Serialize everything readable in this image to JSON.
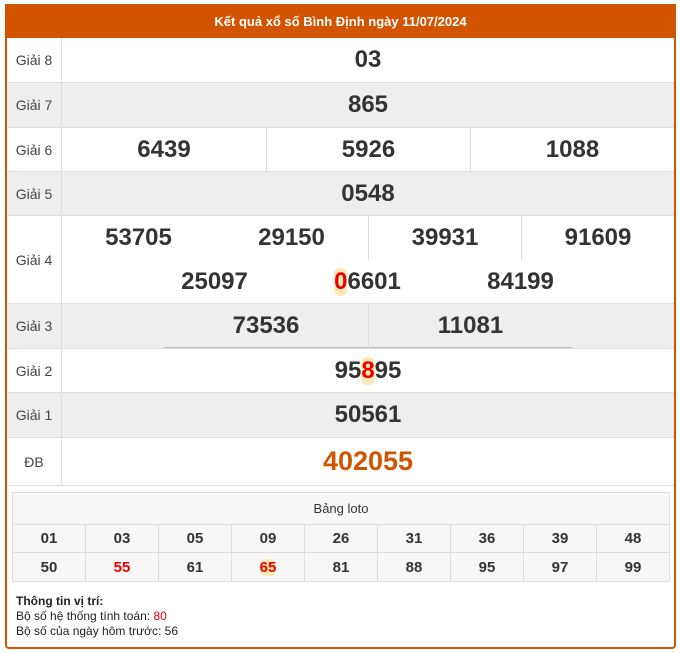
{
  "header": {
    "title": "Kết quả xổ số Bình Định ngày 11/07/2024"
  },
  "prizes": {
    "g8": {
      "label": "Giải 8",
      "numbers": [
        "03"
      ]
    },
    "g7": {
      "label": "Giải 7",
      "numbers": [
        "865"
      ]
    },
    "g6": {
      "label": "Giải 6",
      "numbers": [
        "6439",
        "5926",
        "1088"
      ]
    },
    "g5": {
      "label": "Giải 5",
      "numbers": [
        "0548"
      ]
    },
    "g4": {
      "label": "Giải 4",
      "numbers": [
        "53705",
        "29150",
        "39931",
        "91609",
        "25097",
        "06601",
        "84199"
      ],
      "highlight_first_digit": "0",
      "highlight_rest": "6601"
    },
    "g3": {
      "label": "Giải 3",
      "numbers": [
        "73536",
        "11081"
      ]
    },
    "g2": {
      "label": "Giải 2",
      "numbers": [
        "95895"
      ],
      "parts": [
        "95",
        "8",
        "95"
      ]
    },
    "g1": {
      "label": "Giải 1",
      "numbers": [
        "50561"
      ]
    },
    "db": {
      "label": "ĐB",
      "numbers": [
        "402055"
      ]
    }
  },
  "loto": {
    "title": "Bảng loto",
    "rows": [
      [
        "01",
        "03",
        "05",
        "09",
        "26",
        "31",
        "36",
        "39",
        "48"
      ],
      [
        "50",
        "55",
        "61",
        "65",
        "81",
        "88",
        "95",
        "97",
        "99"
      ]
    ],
    "red": [
      "55",
      "65"
    ]
  },
  "info": {
    "title": "Thông tin vị trí:",
    "line1_label": "Bộ số hệ thống tính toán:",
    "line1_value": "80",
    "line2_label": "Bộ số của ngày hôm trước:",
    "line2_value": "56"
  },
  "colors": {
    "accent": "#d35400",
    "highlight": "#ee0000"
  }
}
